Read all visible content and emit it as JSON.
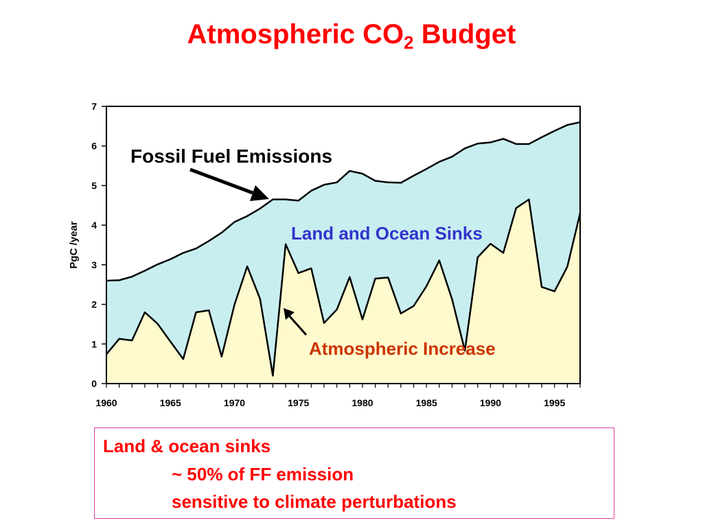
{
  "slide": {
    "title_main": "Atmospheric CO",
    "title_sub": "2",
    "title_end": " Budget"
  },
  "note": {
    "line1": "Land & ocean sinks",
    "line2": "~ 50% of FF emission",
    "line3": "sensitive to climate perturbations",
    "border_color": "#e0409a",
    "text_color": "#ff0000"
  },
  "chart_data": {
    "type": "area",
    "title": "",
    "xlabel": "",
    "ylabel": "PgC /year",
    "xlim": [
      1960,
      1997
    ],
    "ylim": [
      0,
      7
    ],
    "x_ticks": [
      1960,
      1965,
      1970,
      1975,
      1980,
      1985,
      1990,
      1995
    ],
    "y_ticks": [
      0,
      1,
      2,
      3,
      4,
      5,
      6,
      7
    ],
    "x": [
      1960,
      1961,
      1962,
      1963,
      1964,
      1965,
      1966,
      1967,
      1968,
      1969,
      1970,
      1971,
      1972,
      1973,
      1974,
      1975,
      1976,
      1977,
      1978,
      1979,
      1980,
      1981,
      1982,
      1983,
      1984,
      1985,
      1986,
      1987,
      1988,
      1989,
      1990,
      1991,
      1992,
      1993,
      1994,
      1995,
      1996,
      1997
    ],
    "series": [
      {
        "name": "Fossil Fuel Emissions",
        "values": [
          2.6,
          2.61,
          2.7,
          2.85,
          3.01,
          3.14,
          3.3,
          3.41,
          3.6,
          3.81,
          4.08,
          4.23,
          4.42,
          4.65,
          4.65,
          4.62,
          4.87,
          5.02,
          5.08,
          5.37,
          5.3,
          5.12,
          5.08,
          5.07,
          5.25,
          5.42,
          5.6,
          5.73,
          5.94,
          6.06,
          6.09,
          6.18,
          6.05,
          6.05,
          6.22,
          6.38,
          6.53,
          6.6
        ],
        "color": "#c8eef0"
      },
      {
        "name": "Atmospheric Increase",
        "values": [
          0.74,
          1.13,
          1.09,
          1.8,
          1.51,
          1.06,
          0.62,
          1.8,
          1.85,
          0.68,
          1.99,
          2.96,
          2.14,
          0.2,
          3.52,
          2.79,
          2.91,
          1.53,
          1.87,
          2.69,
          1.62,
          2.65,
          2.68,
          1.77,
          1.96,
          2.46,
          3.11,
          2.13,
          0.83,
          3.19,
          3.53,
          3.3,
          4.43,
          4.65,
          2.44,
          2.33,
          2.95,
          4.3
        ],
        "color": "#fffacd"
      }
    ],
    "annotations": [
      {
        "text": "Fossil Fuel Emissions",
        "color": "#000000"
      },
      {
        "text": "Land and Ocean Sinks",
        "color": "#3333cc"
      },
      {
        "text": "Atmospheric Increase",
        "color": "#cc3300"
      }
    ],
    "grid": false,
    "legend": "none"
  }
}
